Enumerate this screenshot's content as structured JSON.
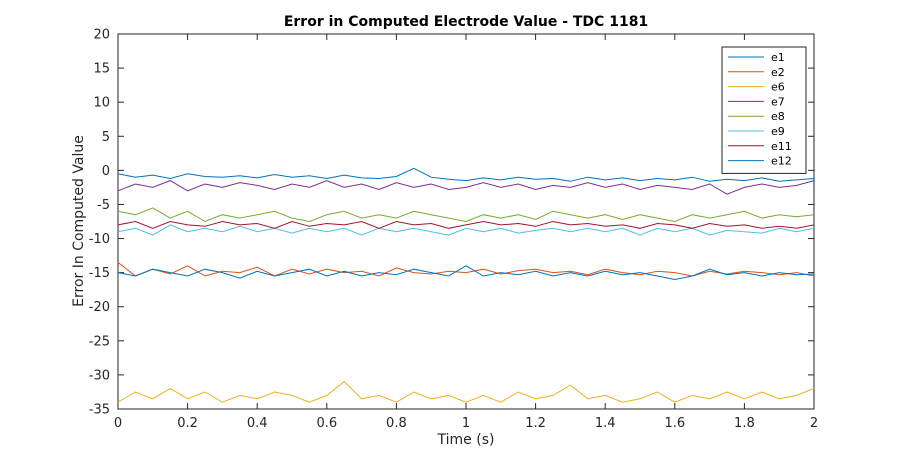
{
  "chart_data": {
    "type": "line",
    "title": "Error in Computed Electrode Value - TDC 1181",
    "xlabel": "Time (s)",
    "ylabel": "Error In Computed Value",
    "xlim": [
      0,
      2
    ],
    "ylim": [
      -35,
      20
    ],
    "xticks": [
      0,
      0.2,
      0.4,
      0.6,
      0.8,
      1,
      1.2,
      1.4,
      1.6,
      1.8,
      2
    ],
    "xtick_labels": [
      "0",
      "0.2",
      "0.4",
      "0.6",
      "0.8",
      "1",
      "1.2",
      "1.4",
      "1.6",
      "1.8",
      "2"
    ],
    "yticks": [
      -35,
      -30,
      -25,
      -20,
      -15,
      -10,
      -5,
      0,
      5,
      10,
      15,
      20
    ],
    "ytick_labels": [
      "-35",
      "-30",
      "-25",
      "-20",
      "-15",
      "-10",
      "-5",
      "0",
      "5",
      "10",
      "15",
      "20"
    ],
    "grid": false,
    "legend_position": "top-right",
    "x": [
      0,
      0.05,
      0.1,
      0.15,
      0.2,
      0.25,
      0.3,
      0.35,
      0.4,
      0.45,
      0.5,
      0.55,
      0.6,
      0.65,
      0.7,
      0.75,
      0.8,
      0.85,
      0.9,
      0.95,
      1.0,
      1.05,
      1.1,
      1.15,
      1.2,
      1.25,
      1.3,
      1.35,
      1.4,
      1.45,
      1.5,
      1.55,
      1.6,
      1.65,
      1.7,
      1.75,
      1.8,
      1.85,
      1.9,
      1.95,
      2.0
    ],
    "series": [
      {
        "name": "e1",
        "color": "#0072BD",
        "values": [
          -0.5,
          -1.0,
          -0.7,
          -1.2,
          -0.5,
          -0.9,
          -1.0,
          -0.8,
          -1.1,
          -0.6,
          -1.0,
          -0.8,
          -1.2,
          -0.7,
          -1.1,
          -1.2,
          -0.9,
          0.3,
          -1.0,
          -1.3,
          -1.5,
          -1.1,
          -1.4,
          -1.0,
          -1.3,
          -1.2,
          -1.6,
          -1.0,
          -1.4,
          -1.1,
          -1.5,
          -1.2,
          -1.4,
          -1.0,
          -1.6,
          -1.3,
          -1.5,
          -1.1,
          -1.6,
          -1.4,
          -1.2
        ]
      },
      {
        "name": "e2",
        "color": "#D95319",
        "values": [
          -13.5,
          -15.5,
          -14.5,
          -15.2,
          -14.0,
          -15.5,
          -14.8,
          -15.0,
          -14.2,
          -15.5,
          -14.5,
          -15.2,
          -14.5,
          -15.0,
          -14.8,
          -15.5,
          -14.3,
          -15.0,
          -15.2,
          -14.8,
          -15.0,
          -14.5,
          -15.2,
          -14.7,
          -14.5,
          -15.0,
          -14.8,
          -15.3,
          -14.5,
          -15.0,
          -15.3,
          -14.8,
          -15.0,
          -15.5,
          -14.8,
          -15.2,
          -14.8,
          -15.0,
          -15.3,
          -15.0,
          -15.5
        ]
      },
      {
        "name": "e6",
        "color": "#EDB120",
        "values": [
          -34.0,
          -32.5,
          -33.5,
          -32.0,
          -33.5,
          -32.5,
          -34.0,
          -33.0,
          -33.5,
          -32.5,
          -33.0,
          -34.0,
          -33.0,
          -31.0,
          -33.5,
          -33.0,
          -34.0,
          -32.5,
          -33.5,
          -33.0,
          -34.0,
          -33.0,
          -34.0,
          -32.5,
          -33.5,
          -33.0,
          -31.5,
          -33.5,
          -33.0,
          -34.0,
          -33.5,
          -32.5,
          -34.0,
          -33.0,
          -33.5,
          -32.5,
          -33.5,
          -32.5,
          -33.5,
          -33.0,
          -32.0
        ]
      },
      {
        "name": "e7",
        "color": "#7E2F8E",
        "values": [
          -3.0,
          -2.0,
          -2.5,
          -1.5,
          -3.0,
          -2.0,
          -2.5,
          -1.8,
          -2.2,
          -2.8,
          -2.0,
          -2.5,
          -1.5,
          -2.5,
          -2.0,
          -2.8,
          -1.8,
          -2.5,
          -2.0,
          -2.8,
          -2.5,
          -1.8,
          -2.5,
          -2.0,
          -2.8,
          -2.2,
          -2.5,
          -1.8,
          -2.5,
          -2.0,
          -2.8,
          -2.2,
          -2.5,
          -2.8,
          -2.0,
          -3.5,
          -2.5,
          -2.0,
          -2.5,
          -2.2,
          -1.5
        ]
      },
      {
        "name": "e8",
        "color": "#77AC30",
        "values": [
          -6.0,
          -6.5,
          -5.5,
          -7.0,
          -6.0,
          -7.5,
          -6.5,
          -7.0,
          -6.5,
          -6.0,
          -7.0,
          -7.5,
          -6.5,
          -6.0,
          -7.0,
          -6.5,
          -7.0,
          -6.0,
          -6.5,
          -7.0,
          -7.5,
          -6.5,
          -7.0,
          -6.5,
          -7.2,
          -6.0,
          -6.5,
          -7.0,
          -6.5,
          -7.2,
          -6.5,
          -7.0,
          -7.5,
          -6.5,
          -7.0,
          -6.5,
          -6.0,
          -7.0,
          -6.5,
          -6.8,
          -6.5
        ]
      },
      {
        "name": "e9",
        "color": "#4DBEEE",
        "values": [
          -9.0,
          -8.5,
          -9.5,
          -8.0,
          -9.0,
          -8.5,
          -9.0,
          -8.2,
          -9.0,
          -8.5,
          -9.2,
          -8.5,
          -9.0,
          -8.5,
          -9.5,
          -8.5,
          -9.0,
          -8.5,
          -9.0,
          -9.5,
          -8.5,
          -9.0,
          -8.5,
          -9.2,
          -8.8,
          -8.5,
          -9.0,
          -8.5,
          -9.0,
          -8.5,
          -9.5,
          -8.5,
          -9.0,
          -8.5,
          -9.5,
          -8.8,
          -9.0,
          -9.2,
          -8.5,
          -9.0,
          -8.5
        ]
      },
      {
        "name": "e11",
        "color": "#A2142F",
        "values": [
          -8.0,
          -7.5,
          -8.5,
          -7.5,
          -8.0,
          -8.2,
          -7.5,
          -8.0,
          -7.8,
          -8.5,
          -7.5,
          -8.2,
          -7.8,
          -8.0,
          -7.5,
          -8.5,
          -7.5,
          -8.0,
          -7.8,
          -8.5,
          -8.0,
          -7.5,
          -8.0,
          -7.8,
          -8.2,
          -7.5,
          -8.0,
          -7.8,
          -8.2,
          -8.0,
          -8.5,
          -7.8,
          -8.0,
          -8.5,
          -7.8,
          -8.2,
          -8.0,
          -8.5,
          -8.2,
          -8.5,
          -8.0
        ]
      },
      {
        "name": "e12",
        "color": "#0072BD",
        "values": [
          -15.0,
          -15.5,
          -14.5,
          -15.0,
          -15.5,
          -14.5,
          -15.0,
          -15.8,
          -14.8,
          -15.5,
          -15.0,
          -14.5,
          -15.5,
          -14.8,
          -15.5,
          -15.0,
          -15.3,
          -14.5,
          -15.0,
          -15.5,
          -14.0,
          -15.5,
          -15.0,
          -15.3,
          -14.8,
          -15.5,
          -15.0,
          -15.5,
          -14.8,
          -15.3,
          -15.0,
          -15.5,
          -16.0,
          -15.5,
          -14.5,
          -15.3,
          -15.0,
          -15.5,
          -15.0,
          -15.3,
          -15.2
        ]
      }
    ]
  }
}
